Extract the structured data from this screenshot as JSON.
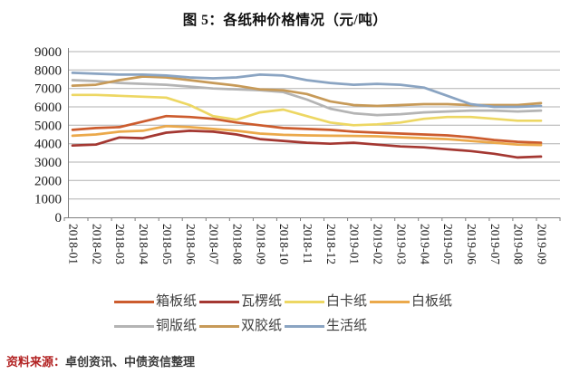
{
  "title": "图 5：各纸种价格情况（元/吨）",
  "source_note": {
    "label": "资料来源：",
    "text": "卓创资讯、中债资信整理"
  },
  "chart_data": {
    "type": "line",
    "title": "图 5：各纸种价格情况（元/吨）",
    "xlabel": "",
    "ylabel": "",
    "ylim": [
      0,
      9000
    ],
    "ytick_step": 1000,
    "grid": true,
    "legend_position": "bottom",
    "categories": [
      "2018-01",
      "2018-02",
      "2018-03",
      "2018-04",
      "2018-05",
      "2018-06",
      "2018-07",
      "2018-08",
      "2018-09",
      "2018-10",
      "2018-11",
      "2018-12",
      "2019-01",
      "2019-02",
      "2019-03",
      "2019-04",
      "2019-05",
      "2019-06",
      "2019-07",
      "2019-08",
      "2019-09"
    ],
    "series": [
      {
        "key": "xiangbanzhi",
        "name": "箱板纸",
        "color": "#cc5c2e",
        "values": [
          4750,
          4850,
          4900,
          5200,
          5500,
          5450,
          5350,
          5150,
          5000,
          4850,
          4800,
          4750,
          4650,
          4600,
          4550,
          4500,
          4450,
          4350,
          4200,
          4100,
          4050
        ]
      },
      {
        "key": "walengzhi",
        "name": "瓦楞纸",
        "color": "#a43832",
        "values": [
          3900,
          3950,
          4340,
          4300,
          4600,
          4700,
          4650,
          4500,
          4250,
          4150,
          4050,
          4000,
          4050,
          3950,
          3850,
          3800,
          3700,
          3600,
          3450,
          3250,
          3300
        ]
      },
      {
        "key": "baikazhi",
        "name": "白卡纸",
        "color": "#edd763",
        "values": [
          6650,
          6650,
          6600,
          6550,
          6500,
          6100,
          5500,
          5300,
          5700,
          5850,
          5500,
          5150,
          5000,
          5050,
          5150,
          5350,
          5450,
          5450,
          5350,
          5250,
          5250
        ]
      },
      {
        "key": "baibanzhi",
        "name": "白板纸",
        "color": "#eba94b",
        "values": [
          4430,
          4500,
          4650,
          4700,
          4950,
          4900,
          4800,
          4700,
          4550,
          4480,
          4450,
          4430,
          4420,
          4400,
          4350,
          4300,
          4250,
          4150,
          4050,
          3950,
          3930
        ]
      },
      {
        "key": "tongbanzhi",
        "name": "铜版纸",
        "color": "#b4b4b4",
        "values": [
          7450,
          7400,
          7300,
          7250,
          7200,
          7100,
          7000,
          6950,
          6900,
          6800,
          6400,
          5900,
          5650,
          5550,
          5600,
          5700,
          5750,
          5800,
          5800,
          5750,
          5800
        ]
      },
      {
        "key": "shuangjiaozhi",
        "name": "双胶纸",
        "color": "#c79a58",
        "values": [
          7150,
          7200,
          7450,
          7650,
          7600,
          7450,
          7300,
          7150,
          6950,
          6900,
          6700,
          6300,
          6100,
          6050,
          6100,
          6150,
          6150,
          6100,
          6100,
          6100,
          6200
        ]
      },
      {
        "key": "shenghuozhi",
        "name": "生活纸",
        "color": "#8aa4c2",
        "values": [
          7850,
          7800,
          7750,
          7750,
          7700,
          7600,
          7550,
          7600,
          7750,
          7700,
          7450,
          7300,
          7200,
          7250,
          7200,
          7050,
          6600,
          6150,
          6000,
          6000,
          6050
        ]
      }
    ],
    "legend_rows": [
      [
        "箱板纸",
        "瓦楞纸",
        "白卡纸",
        "白板纸"
      ],
      [
        "铜版纸",
        "双胶纸",
        "生活纸"
      ]
    ]
  }
}
